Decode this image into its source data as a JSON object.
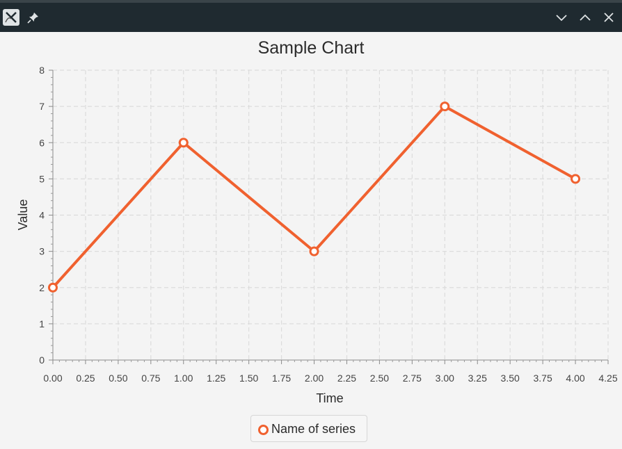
{
  "window": {
    "icons": [
      "app-logo-icon",
      "pin-icon",
      "chevron-down-icon",
      "chevron-up-icon",
      "close-icon"
    ]
  },
  "chart_data": {
    "type": "line",
    "title": "Sample Chart",
    "xlabel": "Time",
    "ylabel": "Value",
    "xlim": [
      0,
      4.25
    ],
    "ylim": [
      0,
      8
    ],
    "x_ticks": [
      "0.00",
      "0.25",
      "0.50",
      "0.75",
      "1.00",
      "1.25",
      "1.50",
      "1.75",
      "2.00",
      "2.25",
      "2.50",
      "2.75",
      "3.00",
      "3.25",
      "3.50",
      "3.75",
      "4.00",
      "4.25"
    ],
    "y_ticks": [
      "0",
      "1",
      "2",
      "3",
      "4",
      "5",
      "6",
      "7",
      "8"
    ],
    "grid": true,
    "legend_position": "bottom",
    "series": [
      {
        "name": "Name of series",
        "color": "#f0612f",
        "x": [
          0,
          1,
          2,
          3,
          4
        ],
        "y": [
          2,
          6,
          3,
          7,
          5
        ]
      }
    ]
  }
}
